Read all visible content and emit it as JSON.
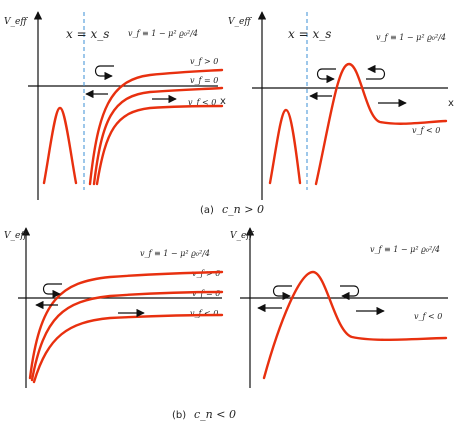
{
  "colors": {
    "curve": "#e8300f",
    "axis": "#111111",
    "dashed_line": "#3b8fd6"
  },
  "panel_a": {
    "caption_tag": "(a)",
    "caption_cond": "c_n > 0",
    "left": {
      "ylabel": "V_eff",
      "xs_label": "x = x_s",
      "formula": "v_f ≡ 1 − μ² ϱ₀²/4",
      "vf_pos": "v_f > 0",
      "vf_zero": "v_f = 0",
      "vf_neg": "v_f < 0",
      "x_axis": "x"
    },
    "right": {
      "ylabel": "V_eff",
      "xs_label": "x = x_s",
      "formula": "v_f ≡ 1 − μ² ϱ₀²/4",
      "vf_neg": "v_f < 0",
      "x_axis": "x"
    }
  },
  "panel_b": {
    "caption_tag": "(b)",
    "caption_cond": "c_n < 0",
    "left": {
      "ylabel": "V_eff",
      "formula": "v_f ≡ 1 − μ² ϱ₀²/4",
      "vf_pos": "v_f > 0",
      "vf_zero": "v_f = 0",
      "vf_neg": "v_f < 0"
    },
    "right": {
      "ylabel": "V_eff",
      "formula": "v_f ≡ 1 − μ² ϱ₀²/4",
      "vf_neg": "v_f < 0"
    }
  }
}
